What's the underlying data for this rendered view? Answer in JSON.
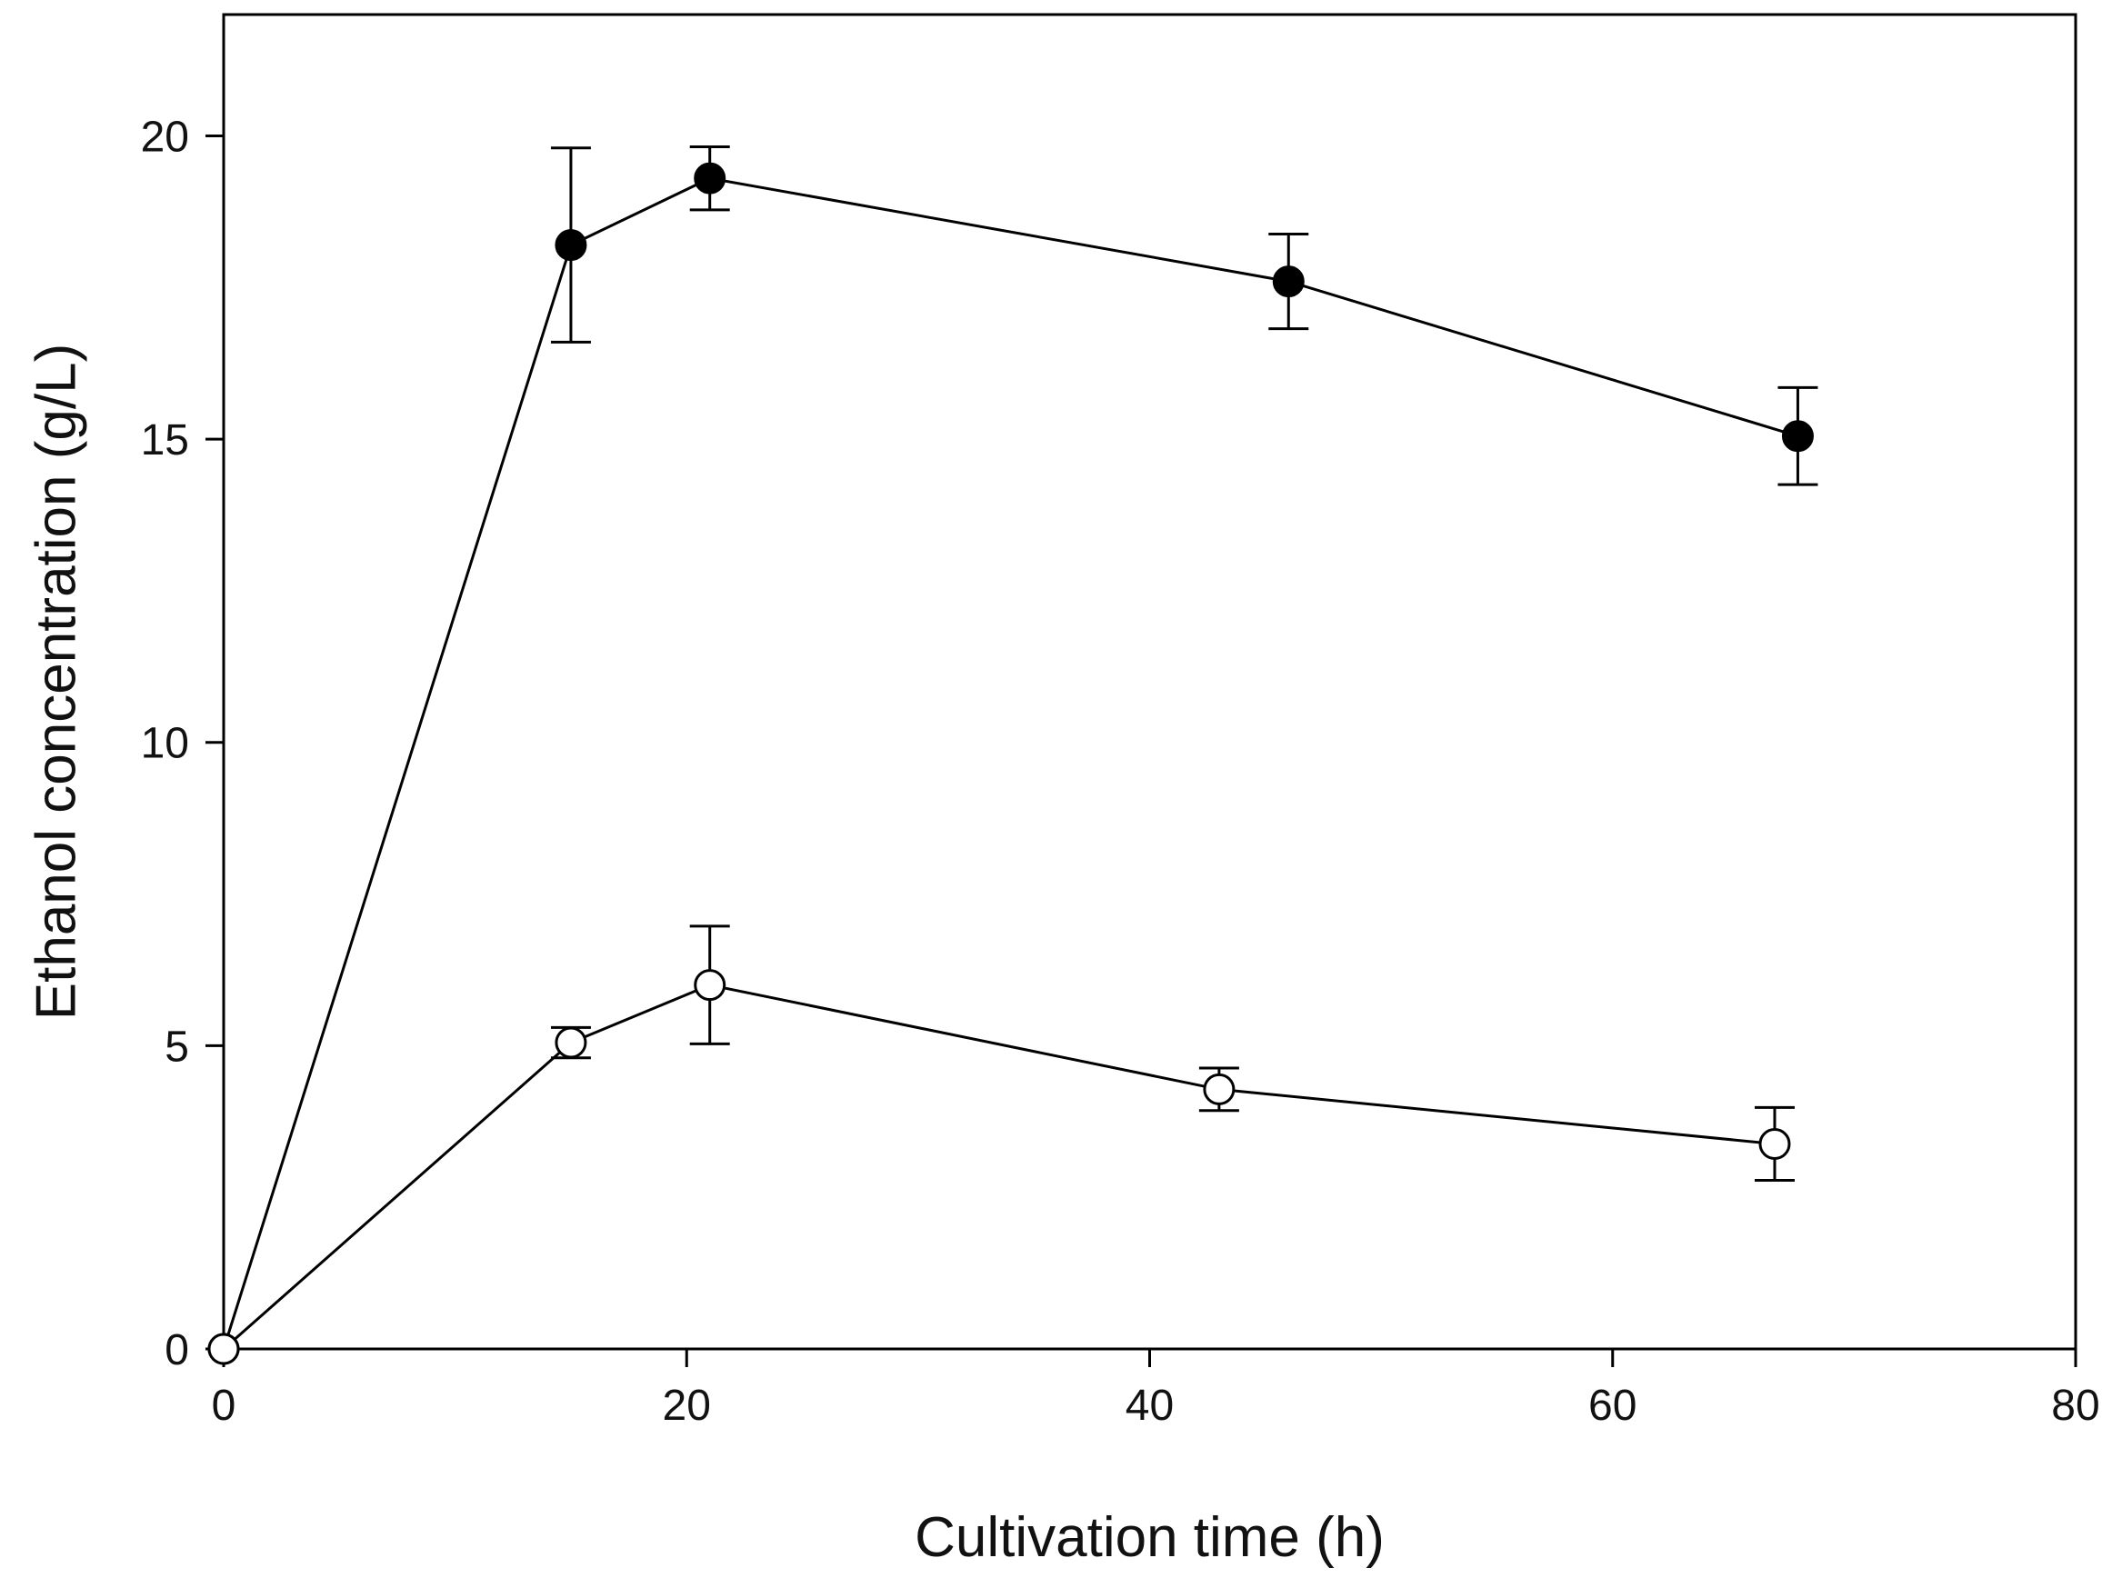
{
  "chart_data": {
    "type": "line",
    "title": "",
    "xlabel": "Cultivation time (h)",
    "ylabel": "Ethanol concentration (g/L)",
    "xlim": [
      0,
      80
    ],
    "ylim": [
      0,
      22
    ],
    "xticks": [
      0,
      20,
      40,
      60,
      80
    ],
    "yticks": [
      0,
      5,
      10,
      15,
      20
    ],
    "grid": false,
    "legend": "none",
    "error_bars": true,
    "series": [
      {
        "marker": "filled-circle",
        "color": "#000000",
        "x": [
          0,
          15,
          21,
          46,
          68
        ],
        "y": [
          0,
          18.2,
          19.3,
          17.6,
          15.05
        ],
        "error": [
          0,
          1.6,
          0.52,
          0.78,
          0.8
        ]
      },
      {
        "marker": "open-circle",
        "color": "#000000",
        "x": [
          0,
          15,
          21,
          43,
          67
        ],
        "y": [
          0,
          5.05,
          6.0,
          4.28,
          3.38
        ],
        "error": [
          0,
          0.25,
          0.97,
          0.35,
          0.6
        ]
      }
    ]
  }
}
